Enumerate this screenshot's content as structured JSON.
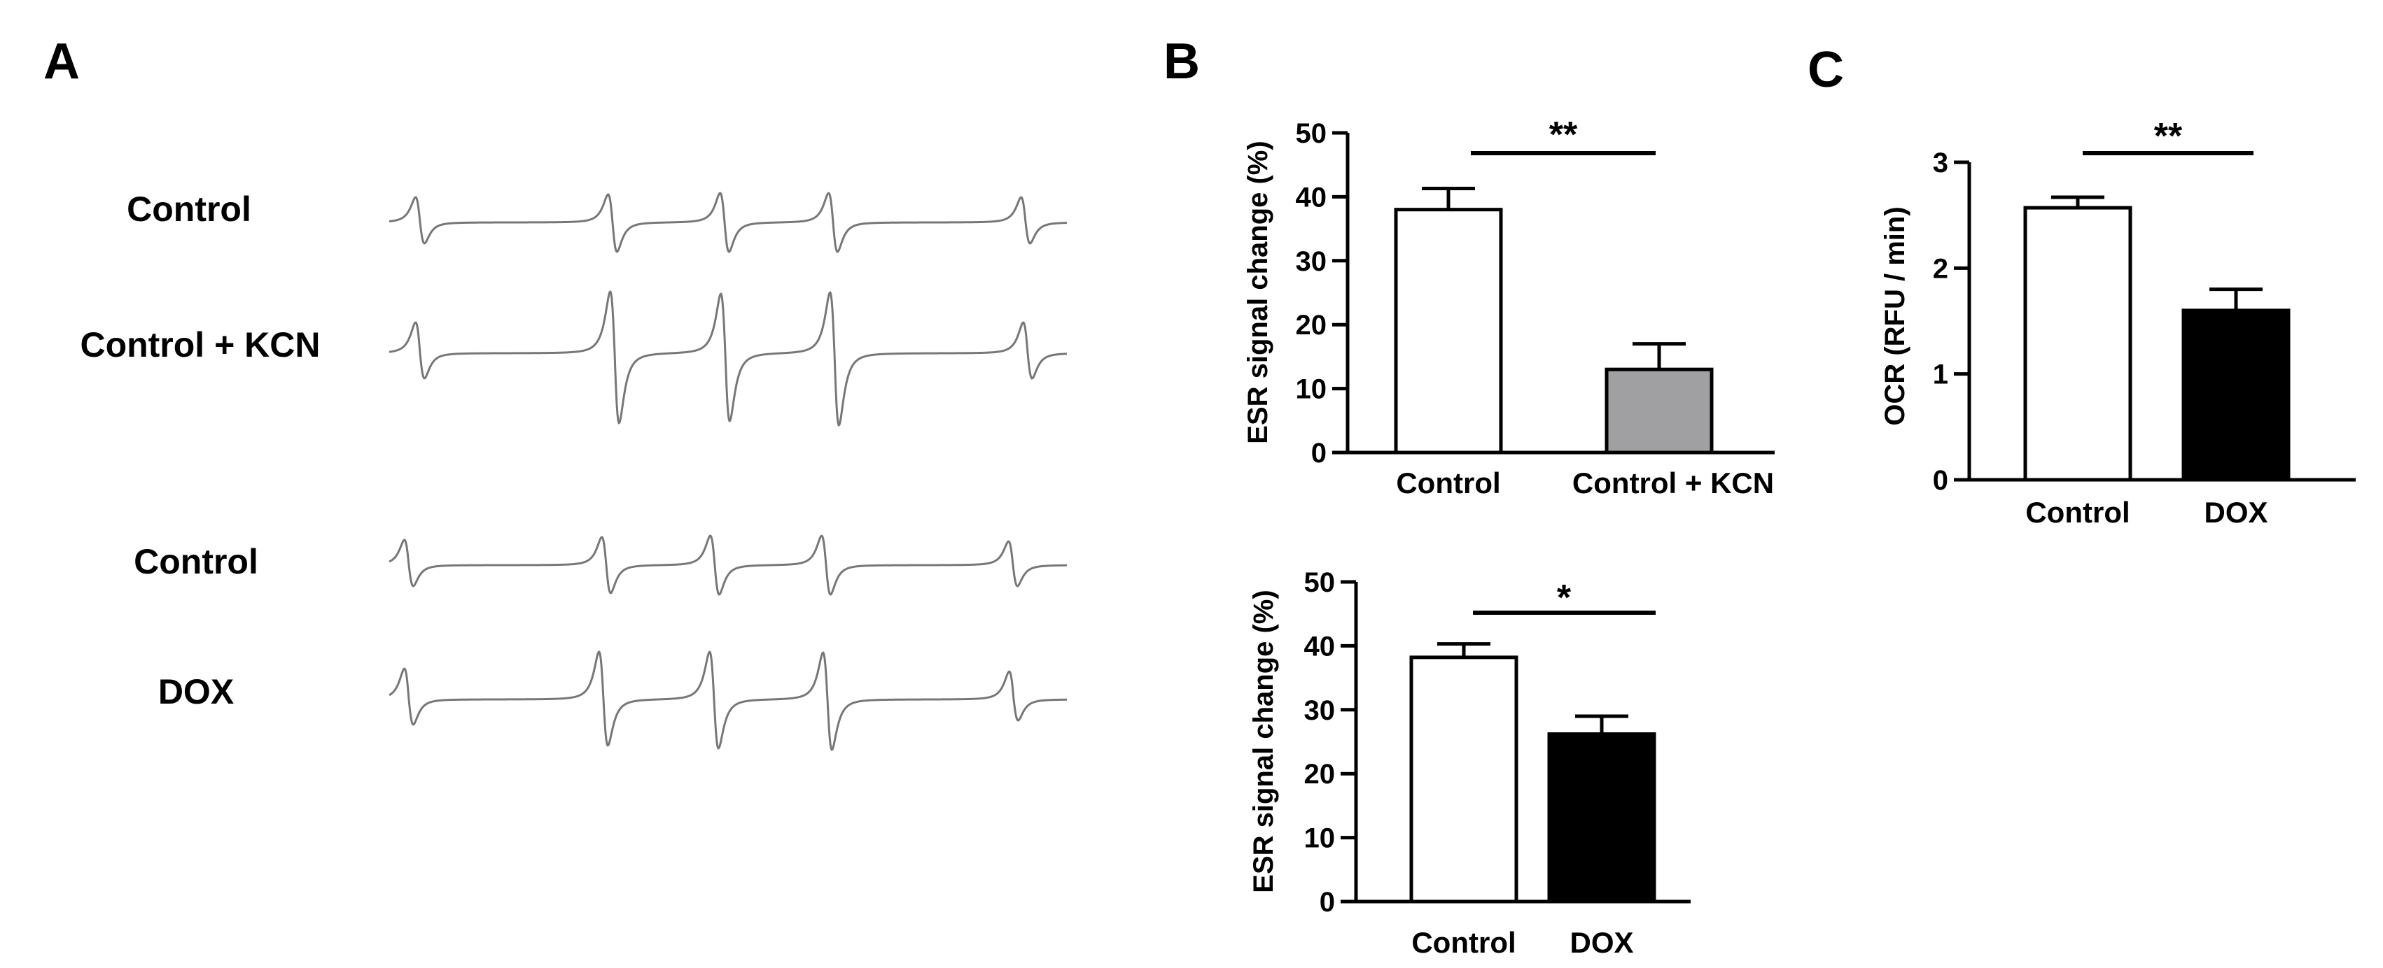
{
  "panels": {
    "a": {
      "letter": "A",
      "traces": [
        {
          "label": "Control"
        },
        {
          "label": "Control + KCN"
        },
        {
          "label": "Control"
        },
        {
          "label": "DOX"
        }
      ]
    },
    "b": {
      "letter": "B"
    },
    "c": {
      "letter": "C"
    }
  },
  "colors": {
    "trace": "#777777",
    "control_bar": "#ffffff",
    "kcn_bar": "#a0a0a2",
    "dox_bar": "#000000",
    "axis": "#000000"
  },
  "chart_data": [
    {
      "id": "B-top",
      "type": "bar",
      "categories": [
        "Control",
        "Control + KCN"
      ],
      "values": [
        38,
        13
      ],
      "errors": [
        3.3,
        4.0
      ],
      "ylabel": "ESR signal change (%)",
      "ylim": [
        0,
        50
      ],
      "yticks": [
        "0",
        "10",
        "20",
        "30",
        "40",
        "50"
      ],
      "significance": "**",
      "bar_colors": [
        "#ffffff",
        "#a0a0a2"
      ]
    },
    {
      "id": "B-bottom",
      "type": "bar",
      "categories": [
        "Control",
        "DOX"
      ],
      "values": [
        38.2,
        26.2
      ],
      "errors": [
        2.1,
        2.8
      ],
      "ylabel": "ESR signal change (%)",
      "ylim": [
        0,
        50
      ],
      "yticks": [
        "0",
        "10",
        "20",
        "30",
        "40",
        "50"
      ],
      "significance": "*",
      "bar_colors": [
        "#ffffff",
        "#000000"
      ]
    },
    {
      "id": "C",
      "type": "bar",
      "categories": [
        "Control",
        "DOX"
      ],
      "values": [
        2.57,
        1.6
      ],
      "errors": [
        0.1,
        0.2
      ],
      "ylabel": "OCR (RFU / min)",
      "ylim": [
        0,
        3
      ],
      "yticks": [
        "0",
        "1",
        "2",
        "3"
      ],
      "significance": "**",
      "bar_colors": [
        "#ffffff",
        "#000000"
      ]
    }
  ]
}
